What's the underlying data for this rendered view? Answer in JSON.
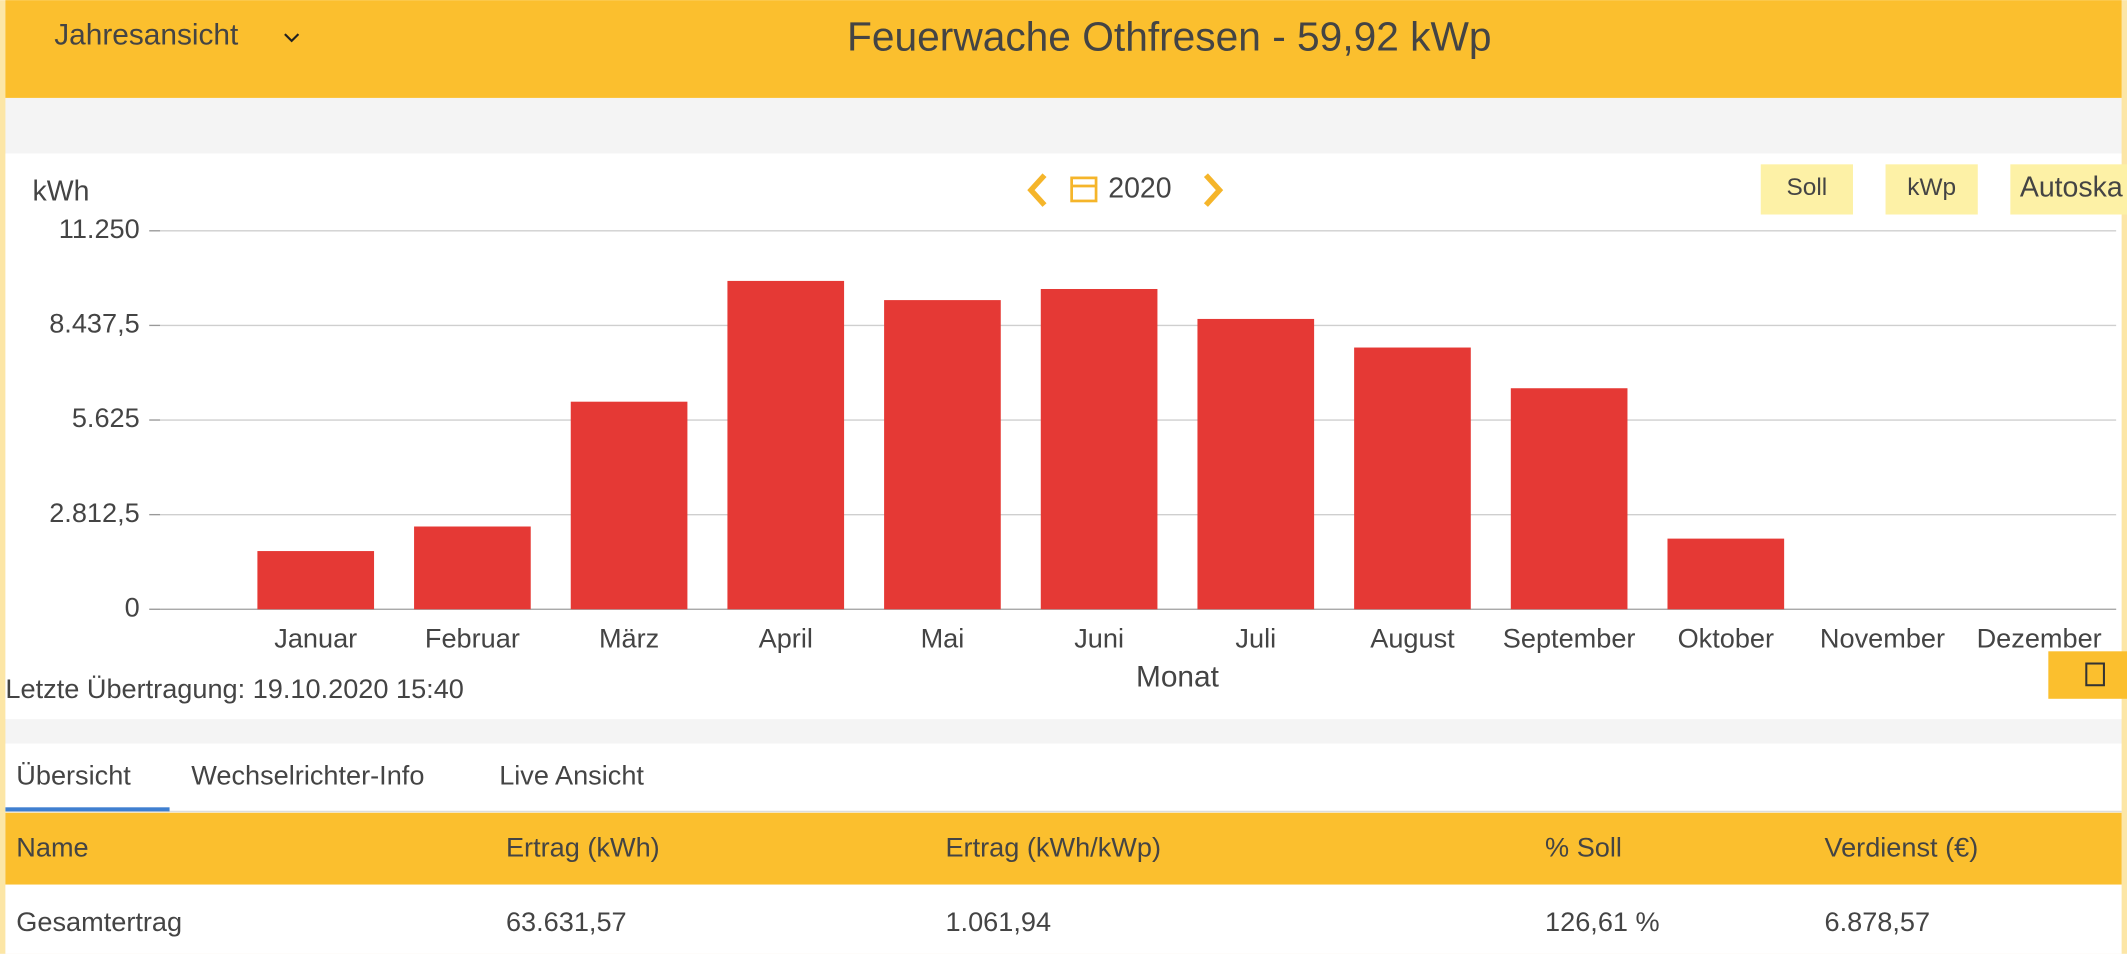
{
  "header": {
    "view": "Jahresansicht",
    "title": "Feuerwache Othfresen - 59,92 kWp"
  },
  "chart_data": {
    "type": "bar",
    "y_label": "kWh",
    "x_label": "Monat",
    "year": "2020",
    "buttons": [
      "Soll",
      "kWp",
      "Autoska"
    ],
    "categories": [
      "Januar",
      "Februar",
      "März",
      "April",
      "Mai",
      "Juni",
      "Juli",
      "August",
      "September",
      "Oktober",
      "November",
      "Dezember"
    ],
    "values": [
      1730,
      2460,
      6170,
      9760,
      9190,
      9520,
      8630,
      7780,
      6570,
      2100,
      null,
      null
    ],
    "color": "#e53935",
    "ylim": [
      0,
      11250
    ],
    "yticks": [
      0,
      {
        "value": 2812.5,
        "label": "2.812,5"
      },
      {
        "value": 5625,
        "label": "5.625"
      },
      {
        "value": 8437.5,
        "label": "8.437,5"
      },
      {
        "value": 11250,
        "label": "11.250"
      }
    ],
    "grid": true
  },
  "status": "Letzte Übertragung: 19.10.2020 15:40",
  "tabs": [
    "Übersicht",
    "Wechselrichter-Info",
    "Live Ansicht"
  ],
  "table": {
    "columns": [
      "Name",
      "Ertrag (kWh)",
      "Ertrag (kWh/kWp)",
      "% Soll",
      "Verdienst (€)"
    ],
    "rows": [
      [
        "Gesamtertrag",
        "63.631,57",
        "1.061,94",
        "126,61 %",
        "6.878,57"
      ]
    ]
  }
}
